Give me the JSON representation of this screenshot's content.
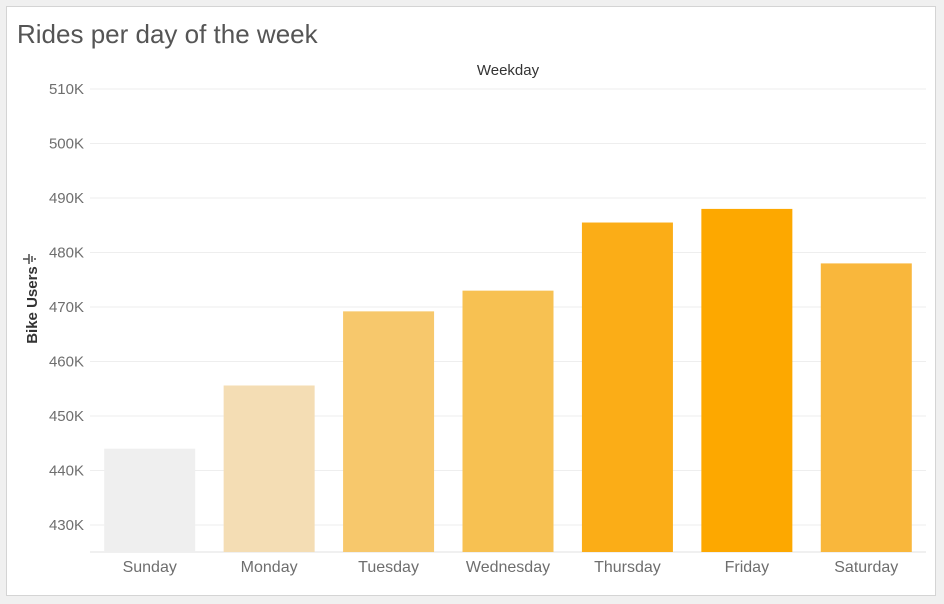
{
  "chart_data": {
    "type": "bar",
    "title": "Rides per day of the week",
    "xlabel": "Weekday",
    "ylabel": "Bike Users",
    "ylabel_icon": "sort-descending-icon",
    "categories": [
      "Sunday",
      "Monday",
      "Tuesday",
      "Wednesday",
      "Thursday",
      "Friday",
      "Saturday"
    ],
    "values": [
      444000,
      455600,
      469200,
      473000,
      485500,
      488000,
      478000
    ],
    "bar_colors": [
      "#efefef",
      "#f4ddb4",
      "#f7c86c",
      "#f7c152",
      "#fbad17",
      "#fda800",
      "#f9b73c"
    ],
    "ylim": [
      425000,
      510000
    ],
    "yticks": [
      430000,
      440000,
      450000,
      460000,
      470000,
      480000,
      490000,
      500000,
      510000
    ],
    "ytick_labels": [
      "430K",
      "440K",
      "450K",
      "460K",
      "470K",
      "480K",
      "490K",
      "500K",
      "510K"
    ],
    "grid": true,
    "legend": "none"
  }
}
